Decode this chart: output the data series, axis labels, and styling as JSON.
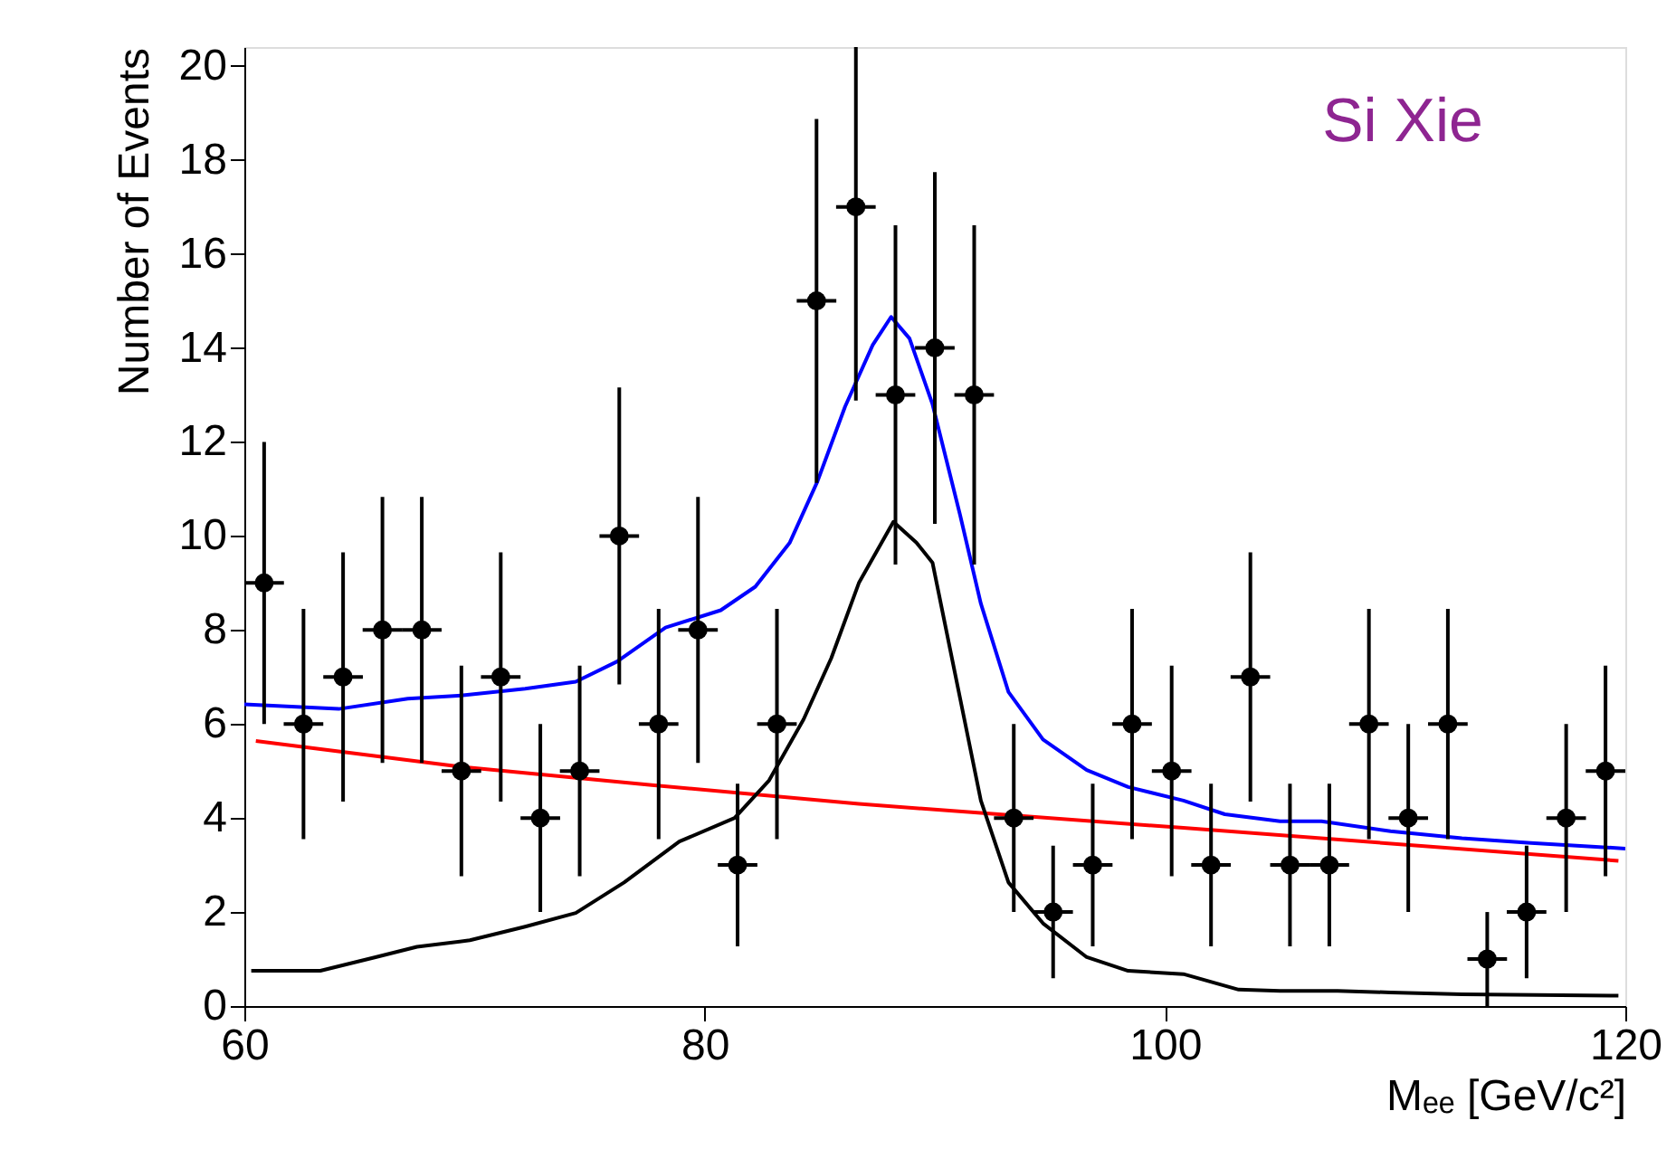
{
  "chart_data": {
    "type": "scatter",
    "xlabel": "Mₑₑ [GeV/c²]",
    "ylabel": "Number of Events",
    "annotations": [
      "Si Xie"
    ],
    "xlim": [
      60,
      120
    ],
    "xticks": [
      60,
      80,
      100,
      120
    ],
    "ylim": [
      0,
      20.4
    ],
    "yticks": [
      0,
      2,
      4,
      6,
      8,
      10,
      12,
      14,
      16,
      18,
      20
    ],
    "grid": false,
    "series": [
      {
        "color": "#000000",
        "marker": "circle",
        "x": [
          60.86,
          62.57,
          64.29,
          66.0,
          67.71,
          69.43,
          71.14,
          72.86,
          74.57,
          76.29,
          78.0,
          79.71,
          81.43,
          83.14,
          84.86,
          86.57,
          88.29,
          90.0,
          91.71,
          93.43,
          95.14,
          96.86,
          98.57,
          100.29,
          102.0,
          103.71,
          105.43,
          107.14,
          108.86,
          110.57,
          112.29,
          114.0,
          115.71,
          117.43,
          119.14
        ],
        "values": [
          9,
          6,
          7,
          8,
          8,
          5,
          7,
          4,
          5,
          10,
          6,
          8,
          3,
          6,
          15,
          17,
          13,
          14,
          13,
          4,
          2,
          3,
          6,
          5,
          3,
          7,
          3,
          3,
          6,
          4,
          6,
          1,
          2,
          4,
          5
        ],
        "errors": [
          3,
          2.45,
          2.65,
          2.83,
          2.83,
          2.24,
          2.65,
          2,
          2.24,
          3.16,
          2.45,
          2.83,
          1.73,
          2.45,
          3.87,
          [
            12.88,
            20.4
          ],
          3.61,
          3.74,
          3.61,
          2,
          1.41,
          1.73,
          2.45,
          2.24,
          1.73,
          2.65,
          1.73,
          1.73,
          2.45,
          2,
          2.45,
          1,
          1.41,
          2,
          2.24
        ],
        "xerrors": [
          0.86,
          0.86,
          0.86,
          0.86,
          0.86,
          0.86,
          0.86,
          0.86,
          0.86,
          0.86,
          0.86,
          0.86,
          0.86,
          0.86,
          0.86,
          0.86,
          0.86,
          0.86,
          0.86,
          0.86,
          0.86,
          0.86,
          0.86,
          0.86,
          0.86,
          0.86,
          0.86,
          0.86,
          0.86,
          0.86,
          0.86,
          0.86,
          0.86,
          0.86,
          0.86
        ]
      },
      {
        "type": "line",
        "color": "#0000ff",
        "x": [
          60.0,
          64.1,
          67.1,
          69.5,
          72.2,
          74.4,
          76.2,
          78.3,
          80.7,
          82.2,
          83.7,
          84.9,
          86.1,
          87.3,
          88.1,
          88.9,
          89.9,
          91.1,
          92.0,
          93.2,
          94.7,
          96.6,
          98.4,
          100.8,
          102.6,
          105.0,
          106.8,
          109.8,
          112.9,
          115.9,
          120.0
        ],
        "values": [
          6.42,
          6.32,
          6.54,
          6.61,
          6.75,
          6.9,
          7.33,
          8.05,
          8.42,
          8.92,
          9.86,
          11.16,
          12.75,
          14.06,
          14.66,
          14.2,
          12.8,
          10.44,
          8.56,
          6.68,
          5.67,
          5.02,
          4.66,
          4.37,
          4.08,
          3.93,
          3.93,
          3.72,
          3.57,
          3.47,
          3.35
        ]
      },
      {
        "type": "line",
        "color": "#ff0000",
        "x": [
          60.5,
          69.4,
          77.7,
          86.7,
          100.8,
          119.7
        ],
        "values": [
          5.64,
          5.09,
          4.7,
          4.3,
          3.79,
          3.09
        ]
      },
      {
        "type": "line",
        "color": "#000000",
        "x": [
          60.3,
          63.3,
          65.7,
          67.5,
          69.8,
          72.2,
          74.4,
          76.5,
          78.9,
          81.3,
          82.8,
          84.3,
          85.5,
          86.7,
          88.2,
          89.2,
          89.9,
          91.1,
          92.0,
          93.2,
          94.7,
          96.6,
          98.4,
          100.8,
          103.2,
          105.0,
          107.5,
          109.8,
          112.9,
          119.7
        ],
        "values": [
          0.75,
          0.75,
          1.04,
          1.26,
          1.4,
          1.69,
          1.98,
          2.63,
          3.5,
          4.0,
          4.8,
          6.1,
          7.4,
          9.0,
          10.3,
          9.86,
          9.43,
          6.54,
          4.37,
          2.63,
          1.76,
          1.04,
          0.75,
          0.68,
          0.35,
          0.32,
          0.32,
          0.29,
          0.25,
          0.22
        ]
      }
    ]
  }
}
